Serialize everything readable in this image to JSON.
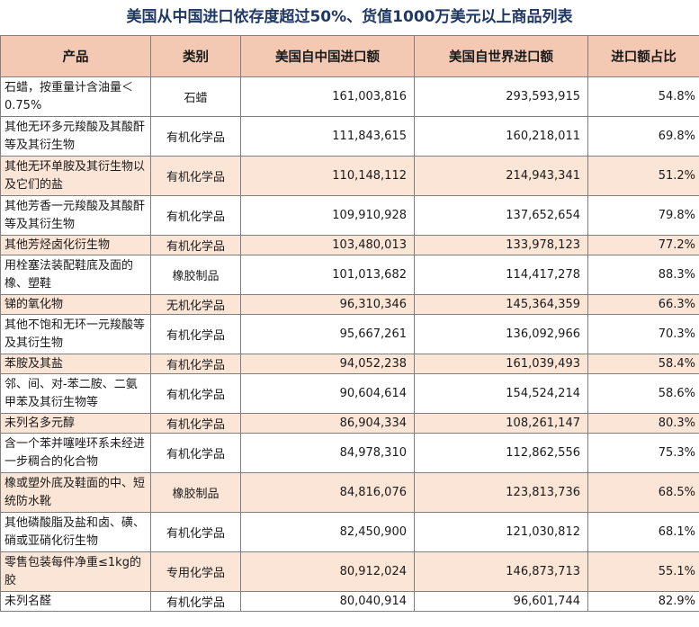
{
  "title": "美国从中国进口依存度超过50%、货值1000万美元以上商品列表",
  "columns": [
    "产品",
    "类别",
    "美国自中国进口额",
    "美国自世界进口额",
    "进口额占比"
  ],
  "rows": [
    {
      "product": "石蜡，按重量计含油量＜0.75%",
      "category": "石蜡",
      "from_china": "161,003,816",
      "from_world": "293,593,915",
      "share": "54.8%"
    },
    {
      "product": "其他无环多元羧酸及其酸酐等及其衍生物",
      "category": "有机化学品",
      "from_china": "111,843,615",
      "from_world": "160,218,011",
      "share": "69.8%"
    },
    {
      "product": "其他无环单胺及其衍生物以及它们的盐",
      "category": "有机化学品",
      "from_china": "110,148,112",
      "from_world": "214,943,341",
      "share": "51.2%"
    },
    {
      "product": "其他芳香一元羧酸及其酸酐等及其衍生物",
      "category": "有机化学品",
      "from_china": "109,910,928",
      "from_world": "137,652,654",
      "share": "79.8%"
    },
    {
      "product": "其他芳烃卤化衍生物",
      "category": "有机化学品",
      "from_china": "103,480,013",
      "from_world": "133,978,123",
      "share": "77.2%"
    },
    {
      "product": "用栓塞法装配鞋底及面的橡、塑鞋",
      "category": "橡胶制品",
      "from_china": "101,013,682",
      "from_world": "114,417,278",
      "share": "88.3%"
    },
    {
      "product": "锑的氧化物",
      "category": "无机化学品",
      "from_china": "96,310,346",
      "from_world": "145,364,359",
      "share": "66.3%"
    },
    {
      "product": "其他不饱和无环一元羧酸等及其衍生物",
      "category": "有机化学品",
      "from_china": "95,667,261",
      "from_world": "136,092,966",
      "share": "70.3%"
    },
    {
      "product": "苯胺及其盐",
      "category": "有机化学品",
      "from_china": "94,052,238",
      "from_world": "161,039,493",
      "share": "58.4%"
    },
    {
      "product": "邻、间、对-苯二胺、二氨甲苯及其衍生物等",
      "category": "有机化学品",
      "from_china": "90,604,614",
      "from_world": "154,524,214",
      "share": "58.6%"
    },
    {
      "product": "未列名多元醇",
      "category": "有机化学品",
      "from_china": "86,904,334",
      "from_world": "108,261,147",
      "share": "80.3%"
    },
    {
      "product": "含一个苯并噻唑环系未经进一步稠合的化合物",
      "category": "有机化学品",
      "from_china": "84,978,310",
      "from_world": "112,862,556",
      "share": "75.3%"
    },
    {
      "product": "橡或塑外底及鞋面的中、短统防水靴",
      "category": "橡胶制品",
      "from_china": "84,816,076",
      "from_world": "123,813,736",
      "share": "68.5%"
    },
    {
      "product": "其他磷酸脂及盐和卤、磺、硝或亚硝化衍生物",
      "category": "有机化学品",
      "from_china": "82,450,900",
      "from_world": "121,030,812",
      "share": "68.1%"
    },
    {
      "product": "零售包装每件净重≤1kg的胶",
      "category": "专用化学品",
      "from_china": "80,912,024",
      "from_world": "146,873,713",
      "share": "55.1%"
    },
    {
      "product": "未列名醛",
      "category": "有机化学品",
      "from_china": "80,040,914",
      "from_world": "96,601,744",
      "share": "82.9%"
    }
  ]
}
